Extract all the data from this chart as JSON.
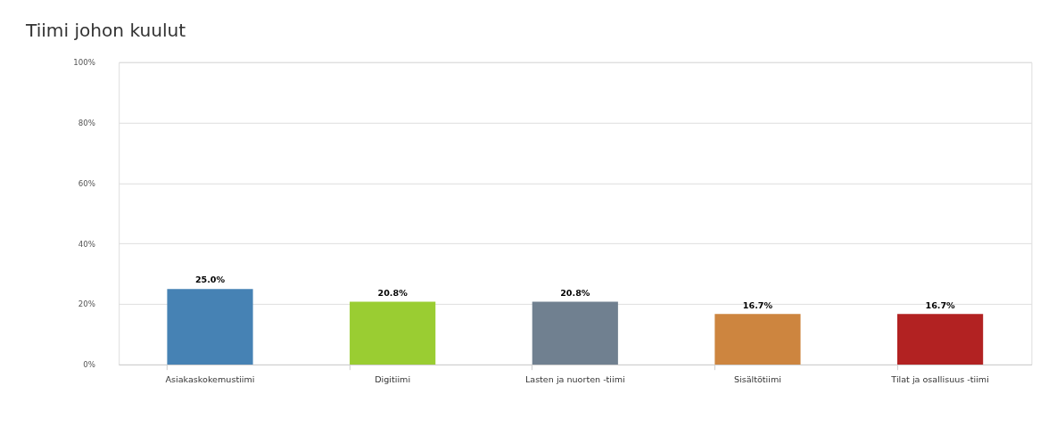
{
  "chart_data": {
    "type": "bar",
    "title": "Tiimi johon kuulut",
    "categories": [
      "Asiakaskokemustiimi",
      "Digitiimi",
      "Lasten ja nuorten -tiimi",
      "Sisältötiimi",
      "Tilat ja osallisuus -tiimi"
    ],
    "values": [
      25.0,
      20.8,
      20.8,
      16.7,
      16.7
    ],
    "colors": [
      "#4682b4",
      "#9acd32",
      "#708090",
      "#cd853f",
      "#b22222"
    ],
    "value_labels": [
      "25.0%",
      "20.8%",
      "20.8%",
      "16.7%",
      "16.7%"
    ],
    "ylim": [
      0,
      100
    ],
    "yticks": [
      {
        "value": 0,
        "label": "0%"
      },
      {
        "value": 20,
        "label": "20%"
      },
      {
        "value": 40,
        "label": "40%"
      },
      {
        "value": 60,
        "label": "60%"
      },
      {
        "value": 80,
        "label": "80%"
      },
      {
        "value": 100,
        "label": "100%"
      }
    ],
    "grid": "y",
    "legend": false
  }
}
